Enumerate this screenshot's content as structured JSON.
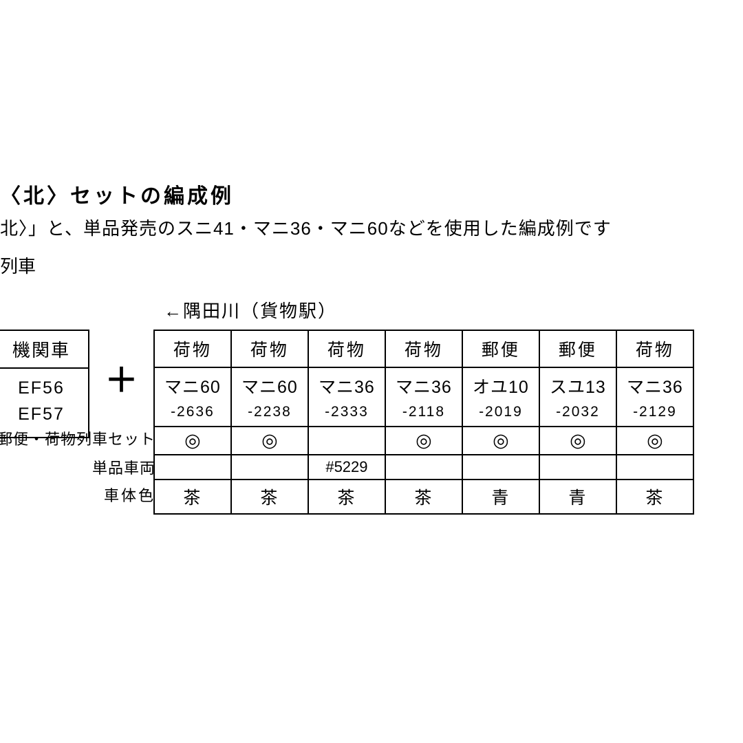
{
  "header": {
    "title_fragment": "〈北〉セットの編成例",
    "subtitle_fragment": "北〉」と、単品発売のスニ41・マニ36・マニ60などを使用した編成例です",
    "line_fragment": "列車",
    "direction": "←隅田川（貨物駅）"
  },
  "locomotive": {
    "header": "機関車",
    "unit1": "EF56",
    "unit2": "EF57"
  },
  "row_labels": {
    "set": "郵便・荷物列車セット",
    "single": "単品車両",
    "color": "車体色"
  },
  "cars": [
    {
      "type": "荷物",
      "name": "マニ60",
      "num": "-2636",
      "set": "◎",
      "single": "",
      "color": "茶"
    },
    {
      "type": "荷物",
      "name": "マニ60",
      "num": "-2238",
      "set": "◎",
      "single": "",
      "color": "茶"
    },
    {
      "type": "荷物",
      "name": "マニ36",
      "num": "-2333",
      "set": "",
      "single": "#5229",
      "color": "茶"
    },
    {
      "type": "荷物",
      "name": "マニ36",
      "num": "-2118",
      "set": "◎",
      "single": "",
      "color": "茶"
    },
    {
      "type": "郵便",
      "name": "オユ10",
      "num": "-2019",
      "set": "◎",
      "single": "",
      "color": "青"
    },
    {
      "type": "郵便",
      "name": "スユ13",
      "num": "-2032",
      "set": "◎",
      "single": "",
      "color": "青"
    },
    {
      "type": "荷物",
      "name": "マニ36",
      "num": "-2129",
      "set": "◎",
      "single": "",
      "color": "茶"
    }
  ],
  "colors": {
    "text": "#000000",
    "background": "#ffffff",
    "border": "#000000"
  },
  "typography": {
    "title_fontsize": 30,
    "body_fontsize": 26,
    "table_fontsize": 25,
    "small_fontsize": 22
  }
}
